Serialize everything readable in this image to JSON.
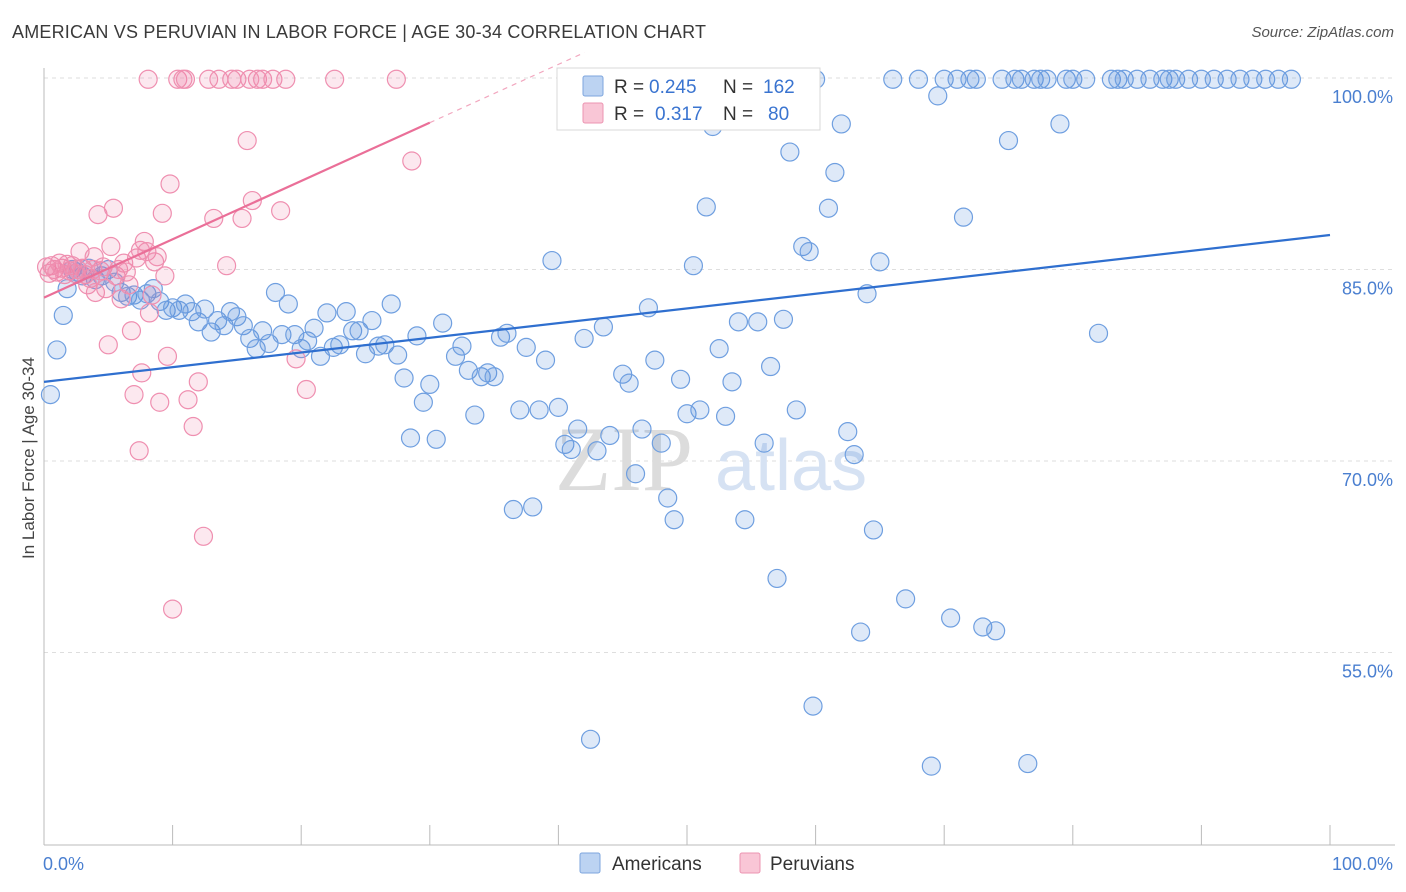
{
  "header": {
    "title": "AMERICAN VS PERUVIAN IN LABOR FORCE | AGE 30-34 CORRELATION CHART",
    "source": "Source: ZipAtlas.com"
  },
  "watermark": {
    "zip": "ZIP",
    "atlas": "atlas"
  },
  "legend": {
    "rows": [
      {
        "r_label": "R =",
        "r_value": "0.245",
        "n_label": "N =",
        "n_value": "162"
      },
      {
        "r_label": "R =",
        "r_value": "0.317",
        "n_label": "N =",
        "n_value": "80"
      }
    ]
  },
  "chart_data": {
    "type": "scatter",
    "title": "AMERICAN VS PERUVIAN IN LABOR FORCE | AGE 30-34 CORRELATION CHART",
    "xlabel": "",
    "ylabel": "In Labor Force | Age 30-34",
    "xlim": [
      0,
      100
    ],
    "ylim": [
      40,
      102
    ],
    "x_tick_labels": [
      "0.0%",
      "100.0%"
    ],
    "y_ticks": [
      55,
      70,
      85,
      100
    ],
    "y_tick_labels": [
      "55.0%",
      "70.0%",
      "85.0%",
      "100.0%"
    ],
    "grid": true,
    "legend_position": "top-center",
    "colors": {
      "americans": "#4a86d8",
      "peruvians": "#f07fa4"
    },
    "series": [
      {
        "name": "Americans",
        "r": 0.245,
        "n": 162,
        "trend": {
          "x": [
            0,
            100
          ],
          "y": [
            76.2,
            87.7
          ]
        },
        "points": [
          [
            0.5,
            75.2
          ],
          [
            1.0,
            78.7
          ],
          [
            1.5,
            81.4
          ],
          [
            1.8,
            83.5
          ],
          [
            2.2,
            85.0
          ],
          [
            2.6,
            84.8
          ],
          [
            3.0,
            84.5
          ],
          [
            3.5,
            85.1
          ],
          [
            4.0,
            84.2
          ],
          [
            4.5,
            84.5
          ],
          [
            5.0,
            85.0
          ],
          [
            5.5,
            84.0
          ],
          [
            6.0,
            83.2
          ],
          [
            6.5,
            82.9
          ],
          [
            7.0,
            83.0
          ],
          [
            7.5,
            82.6
          ],
          [
            8.0,
            83.1
          ],
          [
            8.5,
            83.5
          ],
          [
            9.0,
            82.5
          ],
          [
            9.5,
            81.8
          ],
          [
            10.0,
            82.0
          ],
          [
            10.5,
            81.8
          ],
          [
            11.0,
            82.3
          ],
          [
            11.5,
            81.7
          ],
          [
            12.0,
            80.9
          ],
          [
            12.5,
            81.9
          ],
          [
            13.0,
            80.1
          ],
          [
            13.5,
            81.0
          ],
          [
            14.0,
            80.6
          ],
          [
            14.5,
            81.7
          ],
          [
            15.0,
            81.3
          ],
          [
            15.5,
            80.6
          ],
          [
            16.0,
            79.6
          ],
          [
            16.5,
            78.8
          ],
          [
            17.0,
            80.2
          ],
          [
            17.5,
            79.2
          ],
          [
            18.0,
            83.2
          ],
          [
            18.5,
            79.9
          ],
          [
            19.0,
            82.3
          ],
          [
            19.5,
            79.9
          ],
          [
            20.0,
            78.8
          ],
          [
            20.5,
            79.4
          ],
          [
            21.0,
            80.4
          ],
          [
            21.5,
            78.2
          ],
          [
            22.0,
            81.6
          ],
          [
            22.5,
            78.9
          ],
          [
            23.0,
            79.1
          ],
          [
            23.5,
            81.7
          ],
          [
            24.0,
            80.2
          ],
          [
            24.5,
            80.2
          ],
          [
            25.0,
            78.4
          ],
          [
            25.5,
            81.0
          ],
          [
            26.0,
            79.0
          ],
          [
            26.5,
            79.1
          ],
          [
            27.0,
            82.3
          ],
          [
            27.5,
            78.3
          ],
          [
            28.0,
            76.5
          ],
          [
            28.5,
            71.8
          ],
          [
            29.0,
            79.8
          ],
          [
            29.5,
            74.6
          ],
          [
            30.0,
            76.0
          ],
          [
            30.5,
            71.7
          ],
          [
            31.0,
            80.8
          ],
          [
            32.0,
            78.2
          ],
          [
            32.5,
            79.0
          ],
          [
            33.0,
            77.1
          ],
          [
            33.5,
            73.6
          ],
          [
            34.0,
            76.6
          ],
          [
            34.5,
            76.9
          ],
          [
            35.0,
            76.6
          ],
          [
            35.5,
            79.7
          ],
          [
            36.0,
            80.0
          ],
          [
            36.5,
            66.2
          ],
          [
            37.0,
            74.0
          ],
          [
            37.5,
            78.9
          ],
          [
            38.0,
            66.4
          ],
          [
            38.5,
            74.0
          ],
          [
            39.0,
            77.9
          ],
          [
            39.5,
            85.7
          ],
          [
            40.0,
            74.2
          ],
          [
            40.5,
            71.3
          ],
          [
            41.0,
            70.9
          ],
          [
            41.5,
            72.5
          ],
          [
            42.0,
            79.6
          ],
          [
            42.5,
            48.2
          ],
          [
            43.0,
            70.8
          ],
          [
            43.5,
            80.5
          ],
          [
            44.0,
            72.0
          ],
          [
            45.0,
            76.8
          ],
          [
            45.5,
            76.1
          ],
          [
            46.0,
            69.0
          ],
          [
            46.5,
            72.5
          ],
          [
            47.0,
            82.0
          ],
          [
            47.5,
            77.9
          ],
          [
            48.0,
            71.4
          ],
          [
            48.5,
            67.1
          ],
          [
            49.0,
            65.4
          ],
          [
            49.5,
            76.4
          ],
          [
            50.0,
            73.7
          ],
          [
            50.5,
            85.3
          ],
          [
            51.0,
            74.0
          ],
          [
            51.5,
            89.9
          ],
          [
            52.0,
            96.2
          ],
          [
            52.5,
            78.8
          ],
          [
            53.0,
            73.5
          ],
          [
            53.5,
            76.2
          ],
          [
            54.0,
            80.9
          ],
          [
            54.5,
            65.4
          ],
          [
            55.0,
            99.9
          ],
          [
            55.5,
            80.9
          ],
          [
            56.0,
            71.4
          ],
          [
            56.5,
            77.4
          ],
          [
            57.0,
            60.8
          ],
          [
            57.5,
            81.1
          ],
          [
            58.0,
            94.2
          ],
          [
            58.5,
            74.0
          ],
          [
            59.0,
            86.8
          ],
          [
            59.5,
            86.4
          ],
          [
            59.8,
            50.8
          ],
          [
            60.0,
            99.9
          ],
          [
            61.0,
            89.8
          ],
          [
            61.5,
            92.6
          ],
          [
            62.0,
            96.4
          ],
          [
            62.5,
            72.3
          ],
          [
            63.0,
            70.5
          ],
          [
            63.5,
            56.6
          ],
          [
            64.0,
            83.1
          ],
          [
            64.5,
            64.6
          ],
          [
            65.0,
            85.6
          ],
          [
            66.0,
            99.9
          ],
          [
            67.0,
            59.2
          ],
          [
            68.0,
            99.9
          ],
          [
            69.0,
            46.1
          ],
          [
            69.5,
            98.6
          ],
          [
            70.0,
            99.9
          ],
          [
            70.5,
            57.7
          ],
          [
            71.0,
            99.9
          ],
          [
            71.5,
            89.1
          ],
          [
            72.0,
            99.9
          ],
          [
            72.5,
            99.9
          ],
          [
            73.0,
            57.0
          ],
          [
            74.0,
            56.7
          ],
          [
            74.5,
            99.9
          ],
          [
            75.0,
            95.1
          ],
          [
            75.5,
            99.9
          ],
          [
            76.0,
            99.9
          ],
          [
            76.5,
            46.3
          ],
          [
            77.0,
            99.9
          ],
          [
            77.5,
            99.9
          ],
          [
            78.0,
            99.9
          ],
          [
            79.0,
            96.4
          ],
          [
            79.5,
            99.9
          ],
          [
            80.0,
            99.9
          ],
          [
            81.0,
            99.9
          ],
          [
            82.0,
            80.0
          ],
          [
            83.0,
            99.9
          ],
          [
            83.5,
            99.9
          ],
          [
            84.0,
            99.9
          ],
          [
            85.0,
            99.9
          ],
          [
            86.0,
            99.9
          ],
          [
            87.0,
            99.9
          ],
          [
            87.5,
            99.9
          ],
          [
            88.0,
            99.9
          ],
          [
            89.0,
            99.9
          ],
          [
            90.0,
            99.9
          ],
          [
            91.0,
            99.9
          ],
          [
            92.0,
            99.9
          ],
          [
            93.0,
            99.9
          ],
          [
            94.0,
            99.9
          ],
          [
            95.0,
            99.9
          ],
          [
            96.0,
            99.9
          ],
          [
            97.0,
            99.9
          ]
        ]
      },
      {
        "name": "Peruvians",
        "r": 0.317,
        "n": 80,
        "trend": {
          "x": [
            0,
            30
          ],
          "y": [
            82.8,
            96.5
          ]
        },
        "points": [
          [
            0.2,
            85.2
          ],
          [
            0.4,
            84.7
          ],
          [
            0.6,
            85.3
          ],
          [
            0.8,
            85.0
          ],
          [
            1.0,
            84.8
          ],
          [
            1.2,
            85.5
          ],
          [
            1.4,
            85.1
          ],
          [
            1.6,
            84.6
          ],
          [
            1.8,
            85.4
          ],
          [
            2.0,
            84.9
          ],
          [
            2.2,
            85.3
          ],
          [
            2.4,
            84.7
          ],
          [
            2.6,
            85.0
          ],
          [
            2.8,
            86.4
          ],
          [
            3.0,
            85.1
          ],
          [
            3.2,
            84.6
          ],
          [
            3.4,
            83.8
          ],
          [
            3.6,
            84.3
          ],
          [
            3.8,
            85.0
          ],
          [
            4.0,
            83.2
          ],
          [
            4.2,
            89.3
          ],
          [
            4.4,
            84.9
          ],
          [
            4.6,
            85.2
          ],
          [
            4.8,
            83.5
          ],
          [
            5.0,
            79.1
          ],
          [
            5.2,
            86.8
          ],
          [
            5.4,
            89.8
          ],
          [
            5.6,
            84.5
          ],
          [
            5.8,
            85.0
          ],
          [
            6.0,
            82.7
          ],
          [
            6.2,
            85.5
          ],
          [
            6.4,
            84.8
          ],
          [
            6.6,
            83.8
          ],
          [
            6.8,
            80.2
          ],
          [
            7.0,
            75.2
          ],
          [
            7.2,
            85.9
          ],
          [
            7.4,
            70.8
          ],
          [
            7.6,
            76.9
          ],
          [
            7.8,
            87.2
          ],
          [
            8.0,
            86.4
          ],
          [
            8.2,
            81.6
          ],
          [
            8.4,
            83.0
          ],
          [
            8.6,
            85.6
          ],
          [
            8.8,
            86.0
          ],
          [
            9.0,
            74.6
          ],
          [
            9.2,
            89.4
          ],
          [
            9.4,
            84.5
          ],
          [
            9.6,
            78.2
          ],
          [
            9.8,
            91.7
          ],
          [
            10.0,
            58.4
          ],
          [
            10.4,
            99.9
          ],
          [
            10.8,
            99.9
          ],
          [
            11.0,
            99.9
          ],
          [
            11.2,
            74.8
          ],
          [
            11.6,
            72.7
          ],
          [
            12.0,
            76.2
          ],
          [
            12.4,
            64.1
          ],
          [
            12.8,
            99.9
          ],
          [
            13.2,
            89.0
          ],
          [
            13.6,
            99.9
          ],
          [
            14.2,
            85.3
          ],
          [
            14.6,
            99.9
          ],
          [
            15.0,
            99.9
          ],
          [
            15.4,
            89.0
          ],
          [
            15.8,
            95.1
          ],
          [
            16.2,
            90.4
          ],
          [
            16.6,
            99.9
          ],
          [
            17.0,
            99.9
          ],
          [
            17.8,
            99.9
          ],
          [
            18.4,
            89.6
          ],
          [
            18.8,
            99.9
          ],
          [
            19.6,
            78.0
          ],
          [
            20.4,
            75.6
          ],
          [
            22.6,
            99.9
          ],
          [
            27.4,
            99.9
          ],
          [
            28.6,
            93.5
          ],
          [
            8.1,
            99.9
          ],
          [
            16.0,
            99.9
          ],
          [
            7.5,
            86.5
          ],
          [
            3.9,
            86.0
          ]
        ]
      }
    ]
  }
}
